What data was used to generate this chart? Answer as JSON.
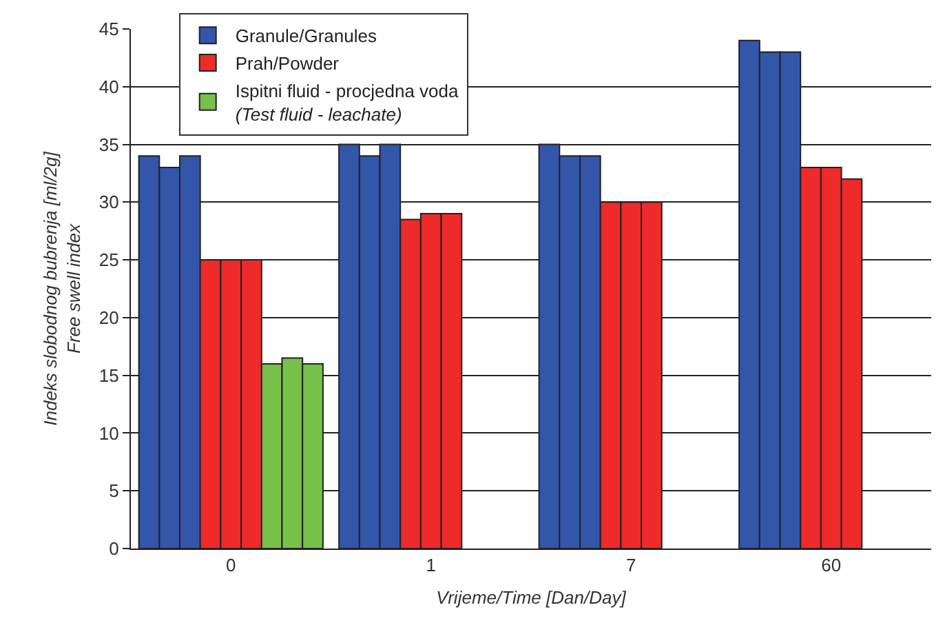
{
  "chart_data": {
    "type": "bar",
    "xlabel": "Vrijeme/Time [Dan/Day]",
    "ylabel": "Indeks slobodnog bubrenja [ml/2g]\nFree swell index",
    "categories": [
      "0",
      "1",
      "7",
      "60"
    ],
    "series": [
      {
        "name": "Granule/Granules",
        "color": "#3355aa",
        "values": [
          34,
          35,
          35,
          44
        ]
      },
      {
        "color": "#3355aa",
        "values": [
          33,
          34,
          34,
          43
        ]
      },
      {
        "color": "#3355aa",
        "values": [
          34,
          35,
          34,
          43
        ]
      },
      {
        "name": "Prah/Powder",
        "color": "#ee2a2a",
        "values": [
          25,
          28.5,
          30,
          33
        ]
      },
      {
        "color": "#ee2a2a",
        "values": [
          25,
          29,
          30,
          33
        ]
      },
      {
        "color": "#ee2a2a",
        "values": [
          25,
          29,
          30,
          32
        ]
      },
      {
        "name": "Ispitni fluid - procjedna voda\n(Test fluid - leachate)",
        "color": "#77c04a",
        "values": [
          16,
          null,
          null,
          null
        ]
      },
      {
        "color": "#77c04a",
        "values": [
          16.5,
          null,
          null,
          null
        ]
      },
      {
        "color": "#77c04a",
        "values": [
          16,
          null,
          null,
          null
        ]
      }
    ],
    "ylim": [
      0,
      45
    ],
    "yticks": [
      0,
      5,
      10,
      15,
      20,
      25,
      30,
      35,
      40,
      45
    ],
    "grid": "y",
    "legend": "top left"
  }
}
